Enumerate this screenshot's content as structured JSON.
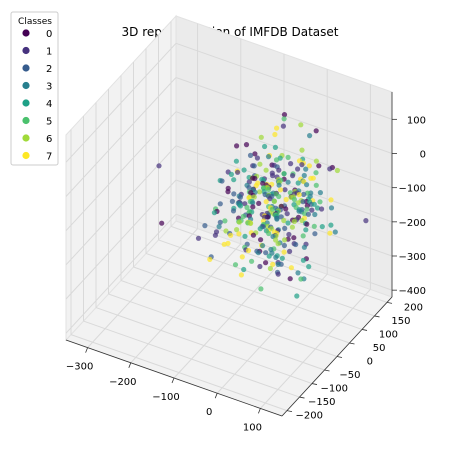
{
  "chart_data": {
    "type": "scatter",
    "projection": "3d",
    "title": "3D representation of IMFDB Dataset",
    "legend": {
      "title": "Classes",
      "placement": "top-left",
      "entries": [
        {
          "label": "0",
          "color": "#440154"
        },
        {
          "label": "1",
          "color": "#46327e"
        },
        {
          "label": "2",
          "color": "#365c8d"
        },
        {
          "label": "3",
          "color": "#277f8e"
        },
        {
          "label": "4",
          "color": "#1fa187"
        },
        {
          "label": "5",
          "color": "#4ac16d"
        },
        {
          "label": "6",
          "color": "#a0da39"
        },
        {
          "label": "7",
          "color": "#fde725"
        }
      ]
    },
    "x_ticks": [
      "−300",
      "−200",
      "−100",
      "0",
      "100"
    ],
    "y_ticks": [
      "200",
      "150",
      "100",
      "50",
      "0",
      "−50",
      "−100",
      "−150",
      "−200"
    ],
    "z_ticks": [
      "100",
      "0",
      "−100",
      "−200",
      "−300",
      "−400"
    ],
    "xlim": [
      -350,
      150
    ],
    "ylim": [
      -220,
      220
    ],
    "zlim": [
      -420,
      180
    ],
    "grid": true,
    "point_alpha": 0.7,
    "cluster_center": [
      0,
      0,
      -50
    ],
    "cluster_spread": [
      52,
      58,
      75
    ],
    "cluster_points_per_class": 45,
    "outliers": [
      {
        "x": -320,
        "y": 100,
        "z": -150,
        "class": 1
      },
      {
        "x": -250,
        "y": -10,
        "z": -200,
        "class": 0
      },
      {
        "x": 130,
        "y": 150,
        "z": -150,
        "class": 1
      },
      {
        "x": 60,
        "y": -190,
        "z": 80,
        "class": 6
      }
    ]
  }
}
